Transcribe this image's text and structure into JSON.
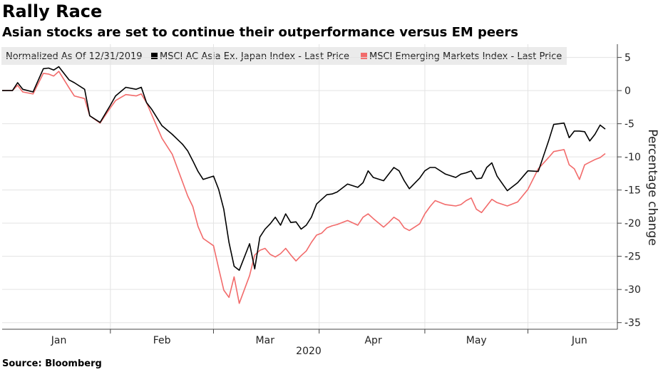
{
  "chart_data": {
    "type": "line",
    "title": "Rally Race",
    "subtitle": "Asian stocks are set to continue their outperformance versus EM peers",
    "source": "Source: Bloomberg",
    "note": "Normalized As Of 12/31/2019",
    "xlabel": "2020",
    "ylabel": "Percentage change",
    "ylim": [
      -36,
      7
    ],
    "yticks": [
      5,
      0,
      -5,
      -10,
      -15,
      -20,
      -25,
      -30,
      -35
    ],
    "xlim": [
      0,
      117
    ],
    "months": [
      {
        "label": "Jan",
        "x": 11
      },
      {
        "label": "Feb",
        "x": 31
      },
      {
        "label": "Mar",
        "x": 51
      },
      {
        "label": "Apr",
        "x": 72
      },
      {
        "label": "May",
        "x": 92
      },
      {
        "label": "Jun",
        "x": 112
      }
    ],
    "legend_position": "top-left",
    "series": [
      {
        "name": "MSCI AC Asia Ex. Japan Index - Last Price",
        "color": "#000000",
        "x": [
          0,
          2,
          3,
          4,
          6,
          8,
          9,
          10,
          11,
          13,
          14,
          16,
          17,
          19,
          21,
          22,
          24,
          26,
          27,
          28,
          29,
          31,
          33,
          35,
          36,
          37,
          38,
          39,
          41,
          42,
          43,
          44,
          45,
          46,
          48,
          49,
          50,
          51,
          52,
          53,
          54,
          55,
          56,
          57,
          58,
          59,
          60,
          61,
          62,
          63,
          64,
          65,
          67,
          69,
          70,
          71,
          72,
          74,
          75,
          76,
          77,
          78,
          79,
          81,
          82,
          83,
          84,
          86,
          88,
          89,
          90,
          91,
          92,
          93,
          94,
          95,
          96,
          98,
          100,
          102,
          104,
          106,
          107,
          109,
          110,
          111,
          112,
          113,
          114,
          115,
          116,
          117
        ],
        "y": [
          0,
          0,
          1.2,
          0.2,
          -0.2,
          3.3,
          3.4,
          3.1,
          3.6,
          1.6,
          1.2,
          0.2,
          -3.8,
          -4.8,
          -2.2,
          -0.8,
          0.5,
          0.2,
          0.5,
          -1.8,
          -2.8,
          -5.3,
          -6.6,
          -8.1,
          -9.1,
          -10.6,
          -12.2,
          -13.4,
          -12.9,
          -14.9,
          -17.9,
          -22.9,
          -26.5,
          -27.1,
          -23.1,
          -26.9,
          -22.1,
          -20.9,
          -20.1,
          -19.1,
          -20.3,
          -18.6,
          -19.9,
          -19.8,
          -20.9,
          -20.3,
          -19.1,
          -17.1,
          -16.4,
          -15.7,
          -15.6,
          -15.3,
          -14.1,
          -14.6,
          -13.9,
          -12.1,
          -13.1,
          -13.6,
          -12.6,
          -11.6,
          -12.1,
          -13.6,
          -14.8,
          -13.2,
          -12.1,
          -11.6,
          -11.6,
          -12.6,
          -13.1,
          -12.6,
          -12.4,
          -12.1,
          -13.3,
          -13.2,
          -11.6,
          -10.9,
          -12.9,
          -15.1,
          -13.9,
          -12.1,
          -12.2,
          -7.6,
          -5.1,
          -4.9,
          -7.1,
          -6.1,
          -6.1,
          -6.2,
          -7.6,
          -6.6,
          -5.2,
          -5.8
        ]
      },
      {
        "name": "MSCI Emerging Markets Index - Last Price",
        "color": "#f26b6b",
        "x": [
          0,
          2,
          3,
          4,
          6,
          8,
          9,
          10,
          11,
          13,
          14,
          16,
          17,
          19,
          21,
          22,
          24,
          26,
          27,
          28,
          29,
          31,
          33,
          35,
          36,
          37,
          38,
          39,
          41,
          42,
          43,
          44,
          45,
          46,
          48,
          49,
          50,
          51,
          52,
          53,
          54,
          55,
          56,
          57,
          58,
          59,
          60,
          61,
          62,
          63,
          64,
          65,
          67,
          69,
          70,
          71,
          72,
          74,
          75,
          76,
          77,
          78,
          79,
          81,
          82,
          83,
          84,
          86,
          88,
          89,
          90,
          91,
          92,
          93,
          94,
          95,
          96,
          98,
          100,
          102,
          104,
          106,
          107,
          109,
          110,
          111,
          112,
          113,
          114,
          115,
          116,
          117
        ],
        "y": [
          0,
          0,
          0.8,
          -0.2,
          -0.5,
          2.6,
          2.5,
          2.2,
          2.9,
          0.4,
          -0.8,
          -1.2,
          -3.8,
          -4.9,
          -2.6,
          -1.5,
          -0.6,
          -0.8,
          -0.5,
          -1.8,
          -3.6,
          -7.2,
          -9.6,
          -13.8,
          -15.9,
          -17.5,
          -20.5,
          -22.3,
          -23.4,
          -26.8,
          -30.1,
          -31.2,
          -28.1,
          -32.1,
          -27.9,
          -24.8,
          -24.1,
          -23.8,
          -24.7,
          -25.1,
          -24.6,
          -23.8,
          -24.8,
          -25.7,
          -24.9,
          -24.2,
          -22.9,
          -21.8,
          -21.5,
          -20.7,
          -20.4,
          -20.2,
          -19.6,
          -20.3,
          -19.1,
          -18.6,
          -19.3,
          -20.6,
          -19.9,
          -19.1,
          -19.6,
          -20.7,
          -21.1,
          -20.1,
          -18.6,
          -17.5,
          -16.6,
          -17.2,
          -17.4,
          -17.2,
          -16.6,
          -16.2,
          -17.9,
          -18.4,
          -17.4,
          -16.4,
          -16.9,
          -17.4,
          -16.8,
          -14.9,
          -11.8,
          -10.1,
          -9.2,
          -8.9,
          -11.2,
          -11.8,
          -13.4,
          -11.2,
          -10.8,
          -10.4,
          -10.1,
          -9.5
        ]
      }
    ]
  }
}
